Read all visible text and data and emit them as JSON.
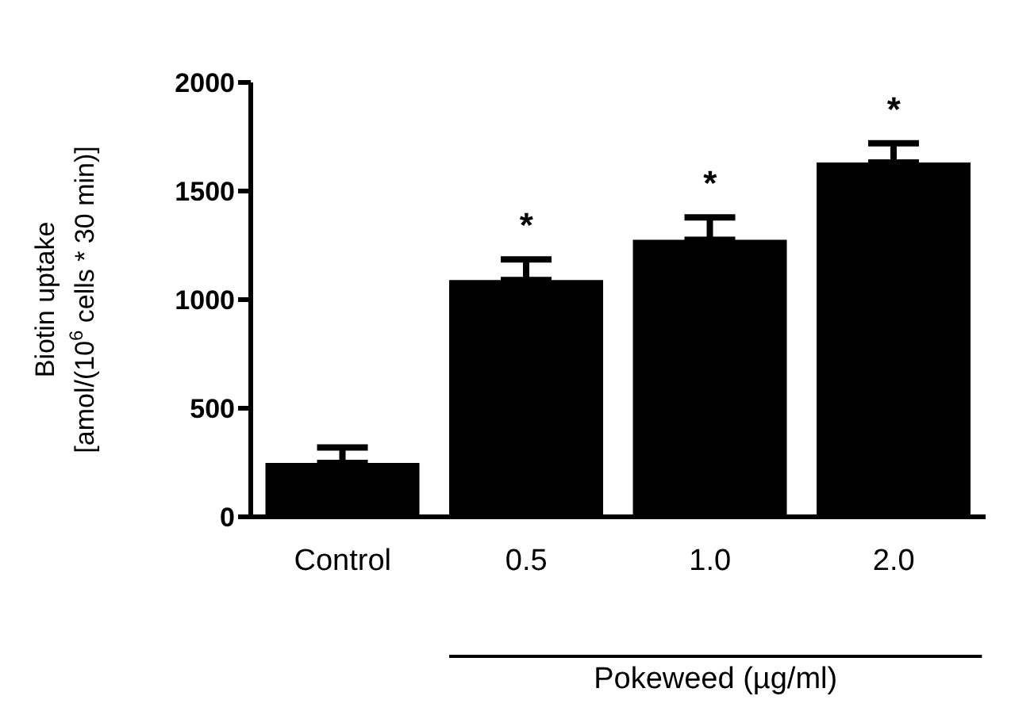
{
  "chart_data": {
    "type": "bar",
    "categories": [
      "Control",
      "0.5",
      "1.0",
      "2.0"
    ],
    "values": [
      248,
      1090,
      1276,
      1631
    ],
    "errors": [
      [
        248,
        319
      ],
      [
        1090,
        1185
      ],
      [
        1276,
        1379
      ],
      [
        1631,
        1720
      ]
    ],
    "color": "#000000",
    "ylabel": "Biotin uptake\n[amol/(10$^{6}$ cells * 30 min)]",
    "xlabel": "Pokeweed (µg/ml)",
    "ylim": [
      0,
      2000
    ],
    "yticks": [
      0,
      500,
      1000,
      1500,
      2000
    ],
    "annotations": [
      {
        "text": "*",
        "x": "0.5",
        "y": 1185
      },
      {
        "text": "*",
        "x": "1.0",
        "y": 1379
      },
      {
        "text": "*",
        "x": "2.0",
        "y": 1720
      }
    ],
    "grid": false,
    "legend": false
  }
}
